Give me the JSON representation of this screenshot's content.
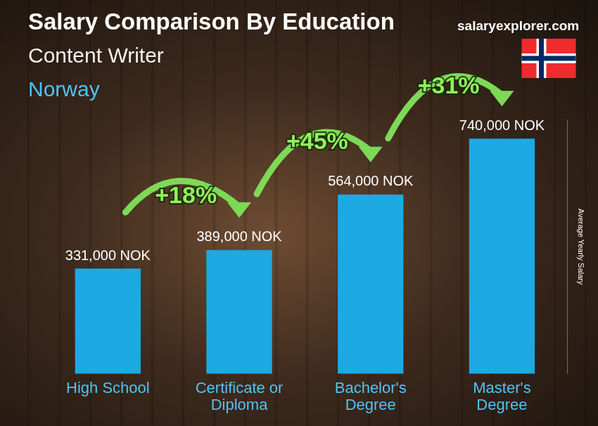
{
  "chart_data": {
    "type": "bar",
    "title": "Salary Comparison By Education",
    "subtitle": "Content Writer",
    "country": "Norway",
    "source": "salaryexplorer.com",
    "y_label": "Average Yearly Salary",
    "categories": [
      "High School",
      "Certificate or Diploma",
      "Bachelor's Degree",
      "Master's Degree"
    ],
    "values": [
      331000,
      389000,
      564000,
      740000
    ],
    "value_labels": [
      "331,000 NOK",
      "389,000 NOK",
      "564,000 NOK",
      "740,000 NOK"
    ],
    "annotations": [
      "+18%",
      "+45%",
      "+31%"
    ],
    "data_labels": true,
    "color": "#1da9e1",
    "ylim": [
      0,
      800000
    ],
    "tick_labels": "x",
    "grid": false
  }
}
